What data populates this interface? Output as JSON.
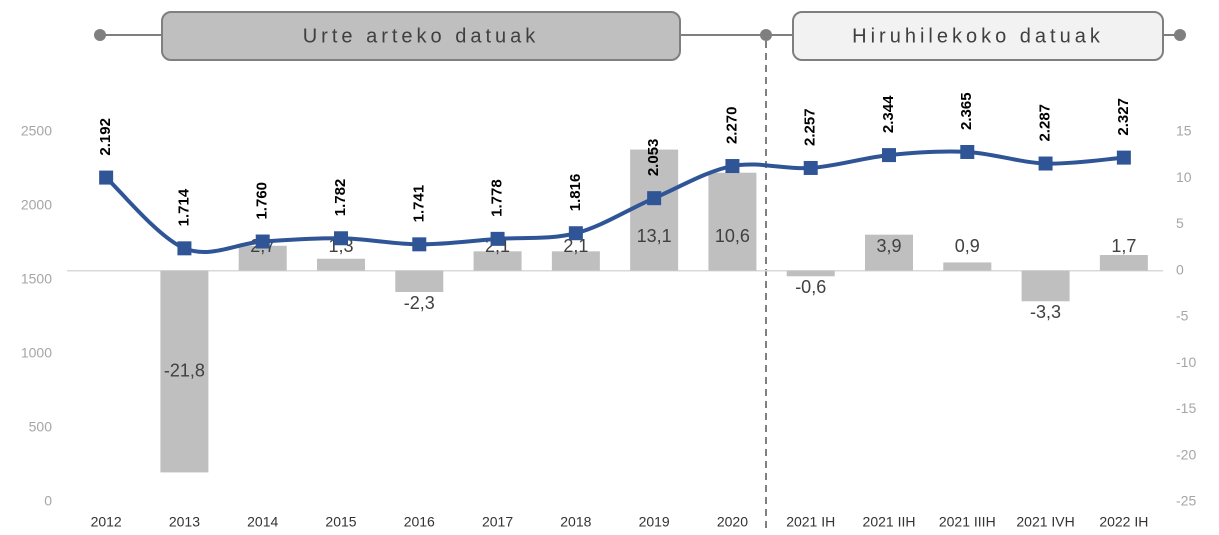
{
  "chart_data": {
    "type": "combo",
    "annotations": [
      "Urte arteko datuak",
      "Hiruhilekoko datuak"
    ],
    "categories": [
      "2012",
      "2013",
      "2014",
      "2015",
      "2016",
      "2017",
      "2018",
      "2019",
      "2020",
      "2021 IH",
      "2021 IIH",
      "2021 IIIH",
      "2021 IVH",
      "2022 IH"
    ],
    "series": [
      {
        "type": "bar",
        "axis": "y2",
        "color": "#bfbfbf",
        "values": [
          null,
          -21.8,
          2.7,
          1.3,
          -2.3,
          2.1,
          2.1,
          13.1,
          10.6,
          -0.6,
          3.9,
          0.9,
          -3.3,
          1.7
        ],
        "value_labels": [
          null,
          "-21,8",
          "2,7",
          "1,3",
          "-2,3",
          "2,1",
          "2,1",
          "13,1",
          "10,6",
          "-0,6",
          "3,9",
          "0,9",
          "-3,3",
          "1,7"
        ]
      },
      {
        "type": "line",
        "axis": "y",
        "color": "#2f5597",
        "values": [
          2192,
          1714,
          1760,
          1782,
          1741,
          1778,
          1816,
          2053,
          2270,
          2257,
          2344,
          2365,
          2287,
          2327
        ],
        "value_labels": [
          "2.192",
          "1.714",
          "1.760",
          "1.782",
          "1.741",
          "1.778",
          "1.816",
          "2.053",
          "2.270",
          "2.257",
          "2.344",
          "2.365",
          "2.287",
          "2.327"
        ]
      }
    ],
    "ylim": [
      0,
      2500
    ],
    "yticks": [
      0,
      500,
      1000,
      1500,
      2000,
      2500
    ],
    "y2lim": [
      -25,
      15
    ],
    "y2ticks": [
      -25,
      -20,
      -15,
      -10,
      -5,
      0,
      5,
      10,
      15
    ]
  }
}
